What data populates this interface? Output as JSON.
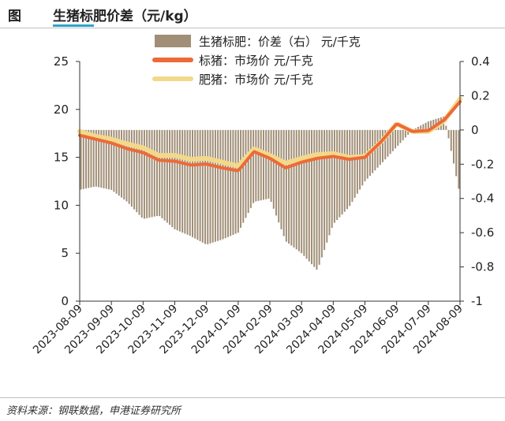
{
  "header": {
    "prefix": "图",
    "title": "生猪标肥价差（元/kg）"
  },
  "footer": {
    "source": "资料来源：钢联数据，申港证券研究所"
  },
  "colors": {
    "bar": "#a08e76",
    "standard": "#ed6a38",
    "fat": "#f2d98a",
    "underline": "#2aa6c9"
  },
  "chart_data": {
    "type": "bar+line",
    "legend_position": "top",
    "grid": false,
    "x_ticks": [
      "2023-08-09",
      "2023-09-09",
      "2023-10-09",
      "2023-11-09",
      "2023-12-09",
      "2024-01-09",
      "2024-02-09",
      "2024-03-09",
      "2024-04-09",
      "2024-05-09",
      "2024-06-09",
      "2024-07-09",
      "2024-08-09"
    ],
    "y_left": {
      "min": 0,
      "max": 25,
      "ticks": [
        "0",
        "5",
        "10",
        "15",
        "20",
        "25"
      ]
    },
    "y_right": {
      "min": -1,
      "max": 0.4,
      "ticks": [
        "-1",
        "-0.8",
        "-0.6",
        "-0.4",
        "-0.2",
        "0",
        "0.2",
        "0.4"
      ]
    },
    "series": [
      {
        "name": "生猪标肥：价差（右） 元/千克",
        "type": "bar",
        "axis": "right",
        "x": [
          0,
          0.5,
          1,
          1.5,
          2,
          2.5,
          3,
          3.5,
          4,
          4.5,
          5,
          5.5,
          6,
          6.5,
          7,
          7.5,
          8,
          8.5,
          9,
          9.5,
          10,
          10.5,
          11,
          11.5,
          12
        ],
        "values": [
          -0.35,
          -0.33,
          -0.35,
          -0.42,
          -0.52,
          -0.5,
          -0.58,
          -0.62,
          -0.67,
          -0.64,
          -0.6,
          -0.42,
          -0.4,
          -0.65,
          -0.72,
          -0.82,
          -0.55,
          -0.45,
          -0.3,
          -0.2,
          -0.1,
          0.0,
          0.05,
          0.08,
          -0.38
        ]
      },
      {
        "name": "标猪：市场价 元/千克",
        "type": "line",
        "axis": "left",
        "x": [
          0,
          0.5,
          1,
          1.5,
          2,
          2.5,
          3,
          3.5,
          4,
          4.5,
          5,
          5.5,
          6,
          6.5,
          7,
          7.5,
          8,
          8.5,
          9,
          9.5,
          10,
          10.5,
          11,
          11.5,
          12
        ],
        "values": [
          17.3,
          16.9,
          16.5,
          15.9,
          15.5,
          14.7,
          14.6,
          14.2,
          14.3,
          13.9,
          13.6,
          15.6,
          14.9,
          13.9,
          14.5,
          14.9,
          15.1,
          14.8,
          15.0,
          16.6,
          18.5,
          17.7,
          17.8,
          18.9,
          20.8
        ]
      },
      {
        "name": "肥猪：市场价 元/千克",
        "type": "line",
        "axis": "left",
        "x": [
          0,
          0.5,
          1,
          1.5,
          2,
          2.5,
          3,
          3.5,
          4,
          4.5,
          5,
          5.5,
          6,
          6.5,
          7,
          7.5,
          8,
          8.5,
          9,
          9.5,
          10,
          10.5,
          11,
          11.5,
          12
        ],
        "values": [
          17.7,
          17.2,
          16.9,
          16.4,
          16.0,
          15.2,
          15.2,
          14.8,
          14.9,
          14.5,
          14.1,
          15.9,
          15.2,
          14.4,
          14.9,
          15.3,
          15.4,
          15.0,
          15.1,
          16.6,
          18.5,
          17.7,
          17.7,
          18.8,
          21.1
        ]
      }
    ]
  }
}
